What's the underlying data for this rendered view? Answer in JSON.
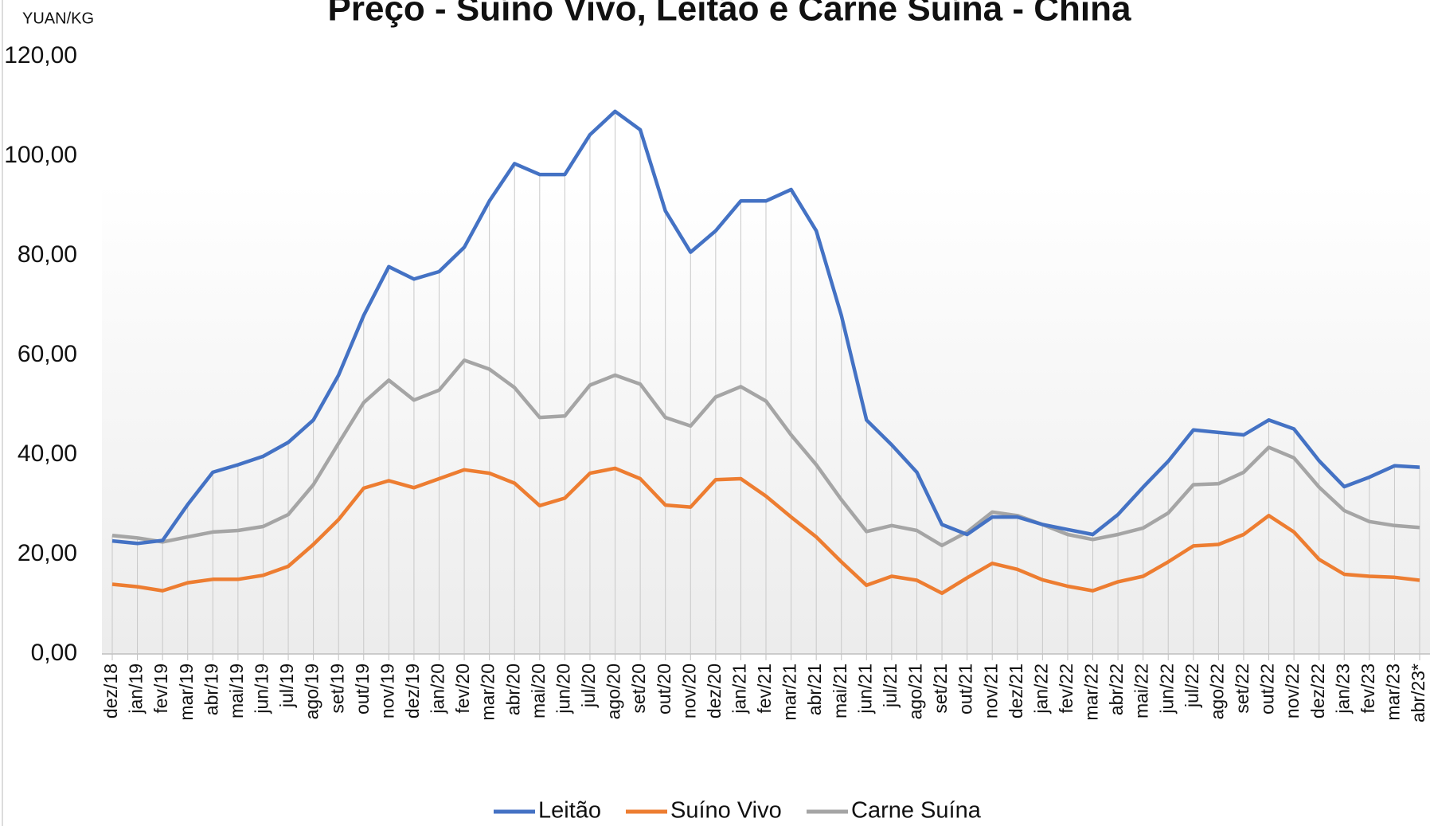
{
  "chart_data": {
    "type": "line",
    "title": "Preço - Suíno Vivo, Leitão e Carne Suína - China",
    "y_label": "YUAN/KG",
    "categories": [
      "dez/18",
      "jan/19",
      "fev/19",
      "mar/19",
      "abr/19",
      "mai/19",
      "jun/19",
      "jul/19",
      "ago/19",
      "set/19",
      "out/19",
      "nov/19",
      "dez/19",
      "jan/20",
      "fev/20",
      "mar/20",
      "abr/20",
      "mai/20",
      "jun/20",
      "jul/20",
      "ago/20",
      "set/20",
      "out/20",
      "nov/20",
      "dez/20",
      "jan/21",
      "fev/21",
      "mar/21",
      "abr/21",
      "mai/21",
      "jun/21",
      "jul/21",
      "ago/21",
      "set/21",
      "out/21",
      "nov/21",
      "dez/21",
      "jan/22",
      "fev/22",
      "mar/22",
      "abr/22",
      "mai/22",
      "jun/22",
      "jul/22",
      "ago/22",
      "set/22",
      "out/22",
      "nov/22",
      "dez/22",
      "jan/23",
      "fev/23",
      "mar/23",
      "abr/23*"
    ],
    "series": [
      {
        "name": "Leitão",
        "color": "#4472c4",
        "values": [
          22.7,
          22.2,
          22.8,
          30,
          36.5,
          38,
          39.7,
          42.5,
          47,
          56,
          68,
          77.8,
          75.3,
          76.8,
          81.7,
          91,
          98.5,
          96.3,
          96.3,
          104.3,
          109,
          105.3,
          89,
          80.7,
          85,
          91,
          91,
          93.3,
          85,
          68,
          47,
          42,
          36.5,
          26,
          24,
          27.5,
          27.5,
          26,
          25,
          24,
          28,
          33.5,
          38.7,
          45,
          44.5,
          44,
          47,
          45.2,
          38.8,
          33.6,
          35.5,
          37.8,
          37.5
        ]
      },
      {
        "name": "Suíno Vivo",
        "color": "#ed7d31",
        "values": [
          14,
          13.5,
          12.7,
          14.3,
          15,
          15,
          15.8,
          17.6,
          22,
          27,
          33.3,
          34.8,
          33.4,
          35.2,
          37,
          36.3,
          34.3,
          29.8,
          31.3,
          36.3,
          37.3,
          35.2,
          29.9,
          29.5,
          35,
          35.2,
          31.7,
          27.5,
          23.5,
          18.5,
          13.8,
          15.6,
          14.8,
          12.2,
          15.3,
          18.2,
          17,
          14.9,
          13.6,
          12.7,
          14.5,
          15.6,
          18.5,
          21.7,
          22,
          24,
          27.8,
          24.5,
          19,
          16,
          15.6,
          15.4,
          14.8
        ]
      },
      {
        "name": "Carne Suína",
        "color": "#a5a5a5",
        "values": [
          23.8,
          23.3,
          22.5,
          23.5,
          24.5,
          24.8,
          25.6,
          28,
          34,
          42.3,
          50.5,
          55,
          51,
          53,
          59,
          57.2,
          53.5,
          47.5,
          47.8,
          54,
          56,
          54.2,
          47.5,
          45.8,
          51.6,
          53.7,
          50.8,
          44,
          38,
          31,
          24.6,
          25.8,
          24.8,
          21.8,
          24.5,
          28.5,
          27.8,
          26,
          24,
          23,
          24,
          25.3,
          28.3,
          34,
          34.2,
          36.5,
          41.5,
          39.4,
          33.5,
          28.8,
          26.6,
          25.8,
          25.4
        ]
      }
    ],
    "ylim": [
      0,
      120
    ],
    "yticks": [
      {
        "value": 0,
        "label": "0,00"
      },
      {
        "value": 20,
        "label": "20,00"
      },
      {
        "value": 40,
        "label": "40,00"
      },
      {
        "value": 60,
        "label": "60,00"
      },
      {
        "value": 80,
        "label": "80,00"
      },
      {
        "value": 100,
        "label": "100,00"
      },
      {
        "value": 120,
        "label": "120,00"
      }
    ],
    "drop_lines": true,
    "legend": "bottom"
  }
}
